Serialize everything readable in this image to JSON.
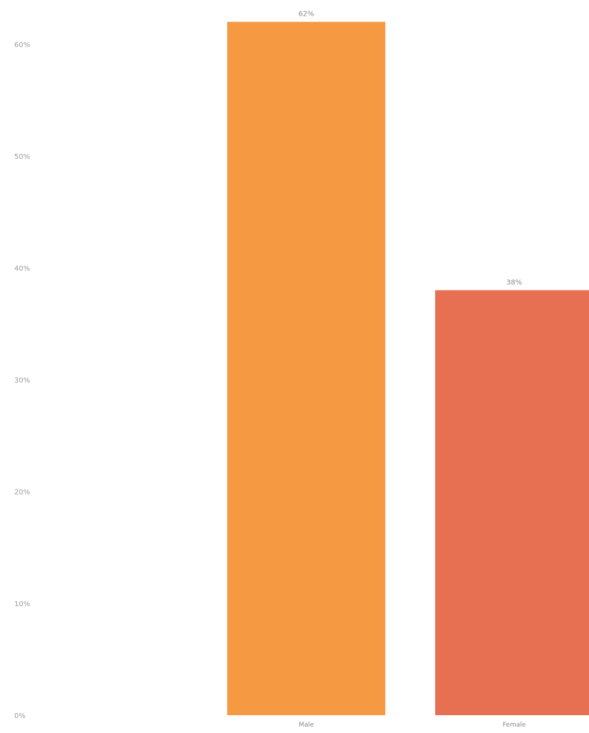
{
  "chart_data": {
    "type": "bar",
    "categories": [
      "Male",
      "Female"
    ],
    "values": [
      62,
      38
    ],
    "data_labels": [
      "62%",
      "38%"
    ],
    "colors": [
      "#F59A43",
      "#E87052"
    ],
    "y_ticks": [
      0,
      10,
      20,
      30,
      40,
      50,
      60
    ],
    "y_tick_labels": [
      "0%",
      "10%",
      "20%",
      "30%",
      "40%",
      "50%",
      "60%"
    ],
    "ylim": [
      0,
      62
    ],
    "y_unit": "%",
    "grid": false,
    "legend": "none",
    "title": "",
    "xlabel": "",
    "ylabel": ""
  }
}
